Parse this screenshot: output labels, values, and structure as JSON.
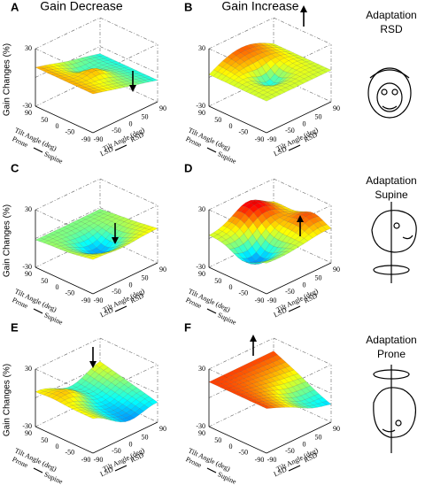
{
  "column_titles": [
    "Gain Decrease",
    "Gain Increase"
  ],
  "panels": [
    {
      "letter": "A"
    },
    {
      "letter": "B"
    },
    {
      "letter": "C"
    },
    {
      "letter": "D"
    },
    {
      "letter": "E"
    },
    {
      "letter": "F"
    }
  ],
  "axes": {
    "z_label": "Gain Changes (%)",
    "z_ticks": [
      30,
      -30
    ],
    "tilt_label": "Tilt Angle (deg)",
    "left_ticks": [
      90,
      50,
      0,
      -50,
      -90
    ],
    "left_ends": [
      "Prone",
      "Supine"
    ],
    "right_ticks": [
      -90,
      -50,
      0,
      50,
      90
    ],
    "right_ends": [
      "LSD",
      "RSD"
    ]
  },
  "adaptations": [
    {
      "line1": "Adaptation",
      "line2": "RSD"
    },
    {
      "line1": "Adaptation",
      "line2": "Supine"
    },
    {
      "line1": "Adaptation",
      "line2": "Prone"
    }
  ]
}
